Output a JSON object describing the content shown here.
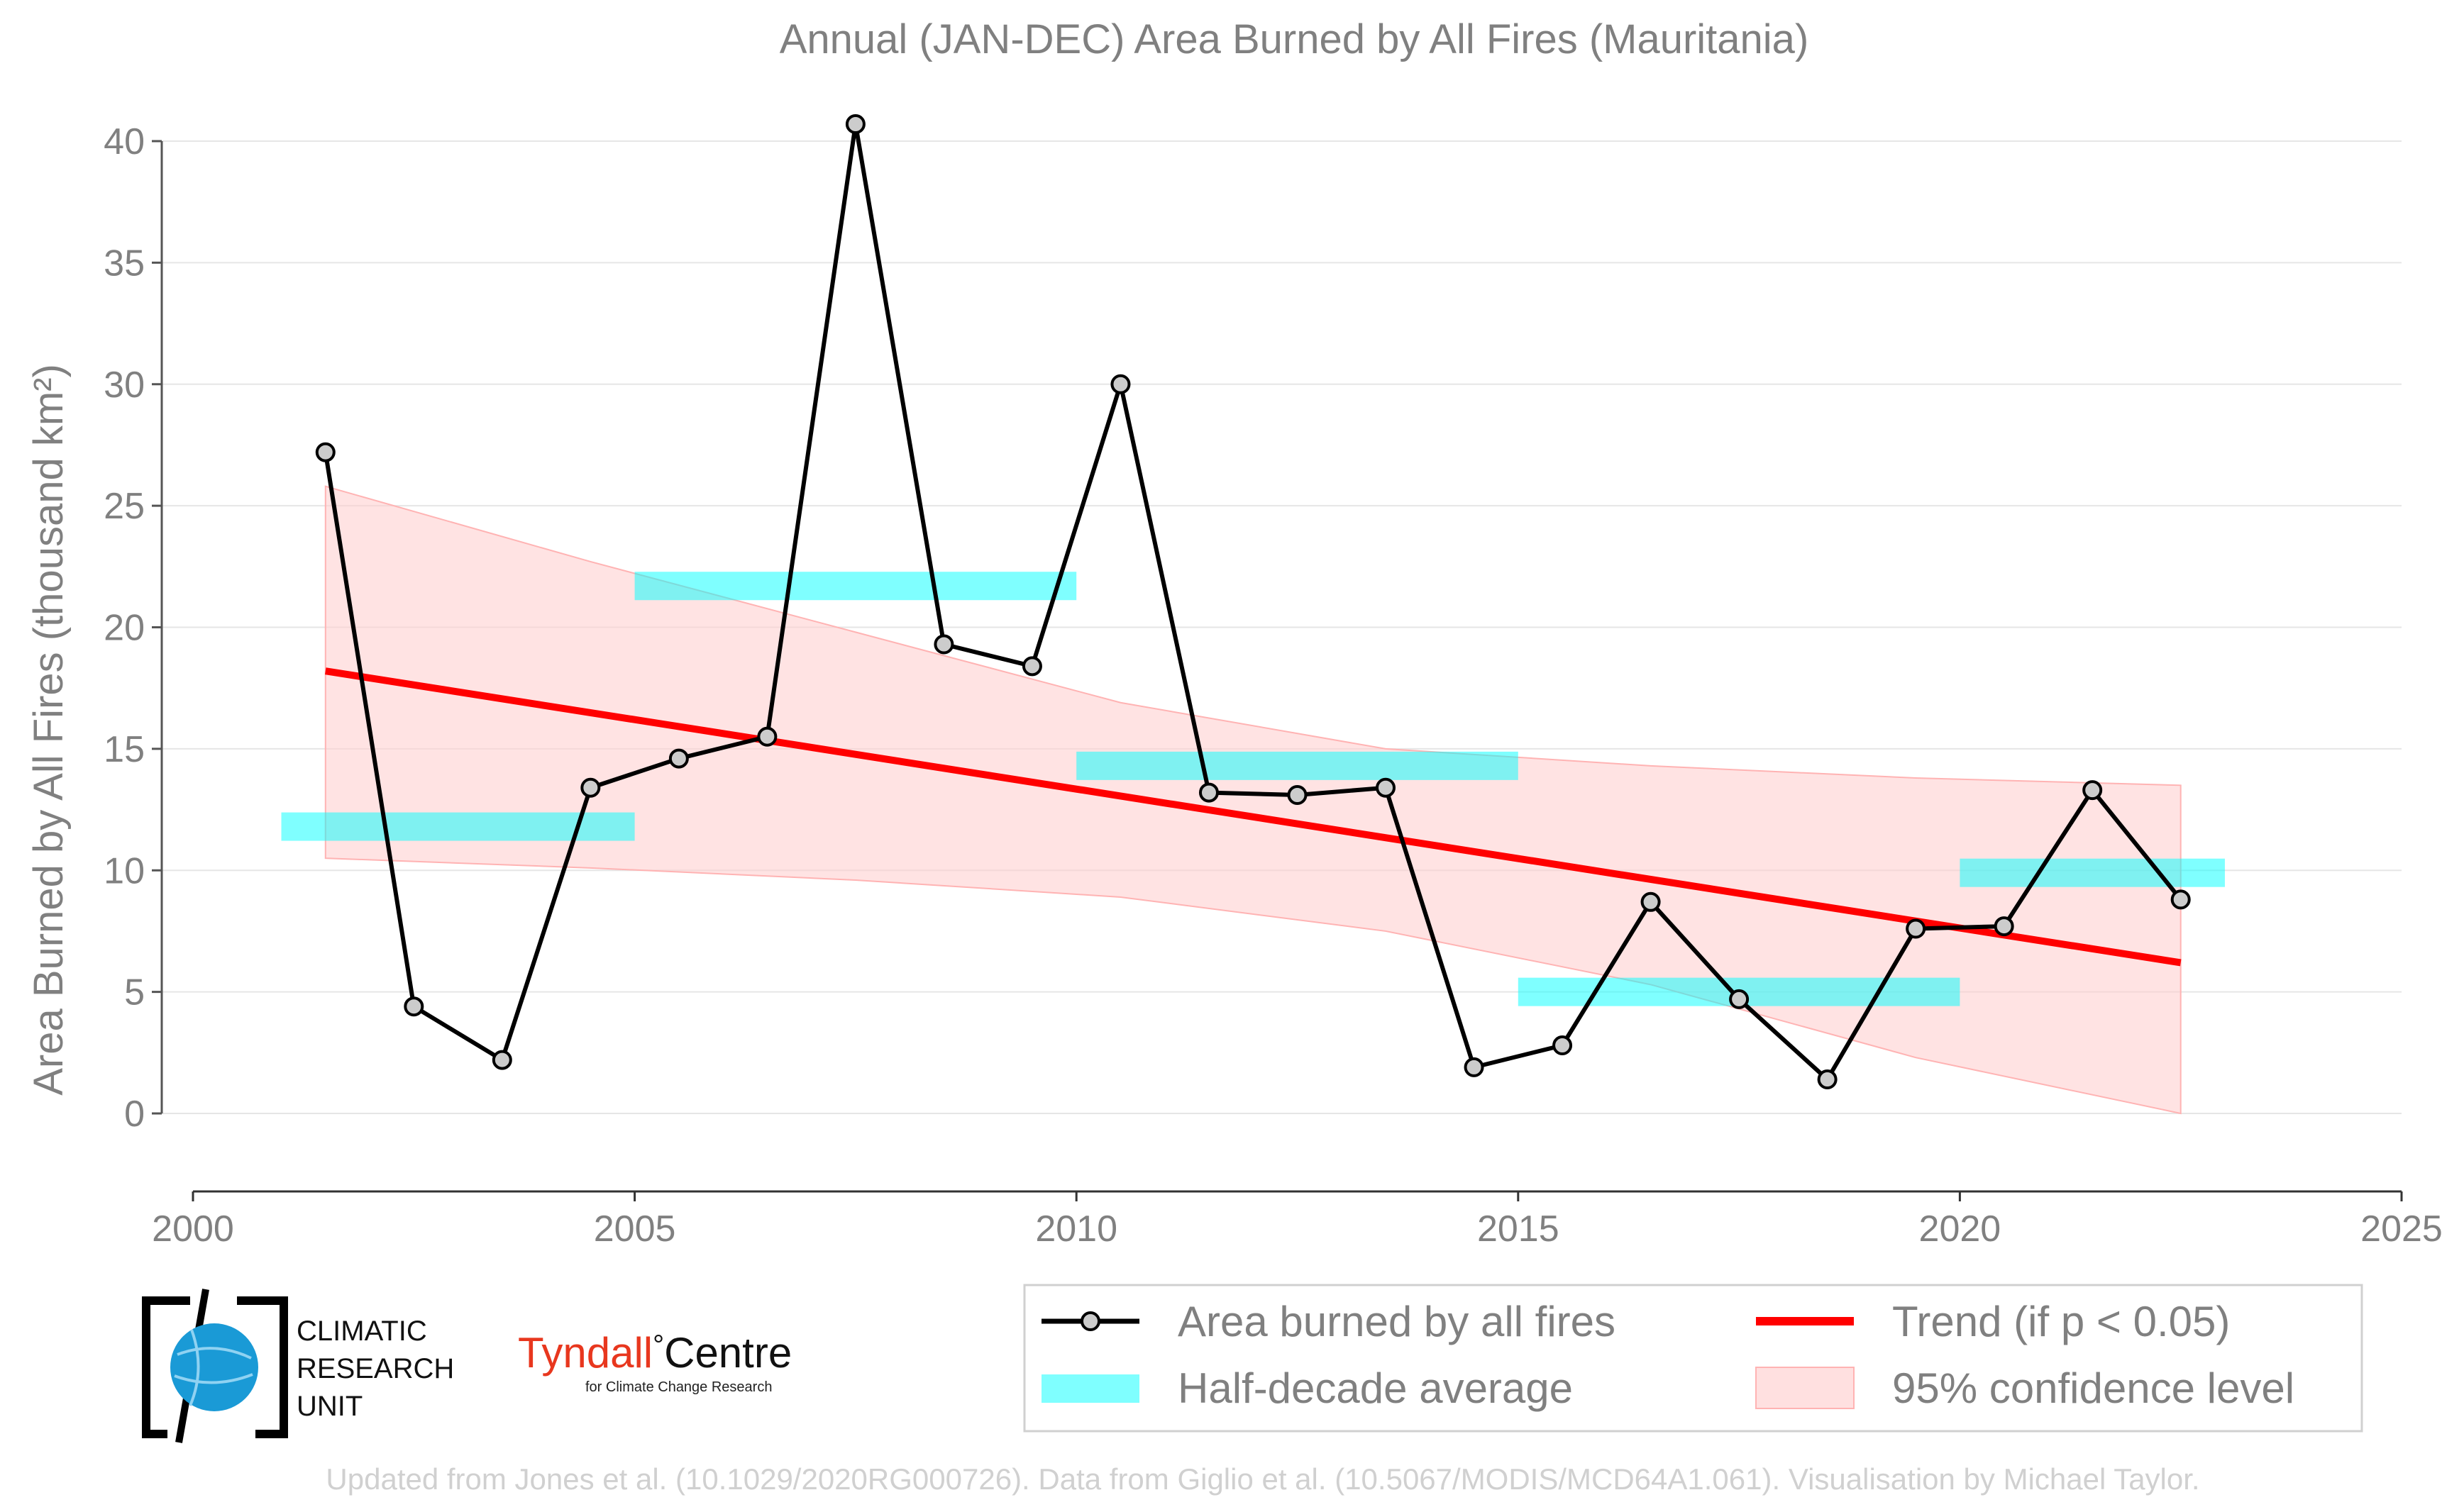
{
  "chart_data": {
    "type": "line",
    "title": "Annual (JAN-DEC) Area Burned by All Fires (Mauritania)",
    "ylabel": "Area Burned by All Fires (thousand km²)",
    "xlabel": "",
    "xlim": [
      2000,
      2025
    ],
    "ylim": [
      -3.3,
      41.5
    ],
    "x_ticks": [
      "2000",
      "2005",
      "2010",
      "2015",
      "2020",
      "2025"
    ],
    "y_ticks": [
      "0",
      "5",
      "10",
      "15",
      "20",
      "25",
      "30",
      "35",
      "40"
    ],
    "grid": "horizontal",
    "legend_position": "bottom-right",
    "series": [
      {
        "name": "Area burned by all fires",
        "color": "#000000",
        "x": [
          2001.5,
          2002.5,
          2003.5,
          2004.5,
          2005.5,
          2006.5,
          2007.5,
          2008.5,
          2009.5,
          2010.5,
          2011.5,
          2012.5,
          2013.5,
          2014.5,
          2015.5,
          2016.5,
          2017.5,
          2018.5,
          2019.5,
          2020.5,
          2021.5,
          2022.5
        ],
        "y": [
          27.2,
          4.4,
          2.2,
          13.4,
          14.6,
          15.5,
          40.7,
          19.3,
          18.4,
          30.0,
          13.2,
          13.1,
          13.4,
          1.9,
          2.8,
          8.7,
          4.7,
          1.4,
          7.6,
          7.7,
          13.3,
          8.8
        ]
      },
      {
        "name": "Half-decade average",
        "color": "#00ffff",
        "segments": [
          {
            "x0": 2001.0,
            "x1": 2005.0,
            "y": 11.8
          },
          {
            "x0": 2005.0,
            "x1": 2010.0,
            "y": 21.7
          },
          {
            "x0": 2010.0,
            "x1": 2015.0,
            "y": 14.3
          },
          {
            "x0": 2015.0,
            "x1": 2020.0,
            "y": 5.0
          },
          {
            "x0": 2020.0,
            "x1": 2023.0,
            "y": 9.9
          }
        ]
      },
      {
        "name": "Trend (if p < 0.05)",
        "color": "#ff0000",
        "x": [
          2001.5,
          2022.5
        ],
        "y": [
          18.2,
          6.2
        ]
      },
      {
        "name": "95% confidence level",
        "color": "#ffcccc",
        "x": [
          2001.5,
          2004.5,
          2007.5,
          2010.5,
          2013.5,
          2016.5,
          2019.5,
          2022.5
        ],
        "upper": [
          25.8,
          22.7,
          19.8,
          16.9,
          15.0,
          14.3,
          13.8,
          13.5
        ],
        "lower": [
          10.5,
          10.1,
          9.6,
          8.9,
          7.5,
          5.3,
          2.3,
          0.0
        ]
      }
    ]
  },
  "legend": {
    "items": [
      "Area burned by all fires",
      "Trend (if p < 0.05)",
      "Half-decade average",
      "95% confidence level"
    ]
  },
  "logos": {
    "cru_line1": "CLIMATIC",
    "cru_line2": "RESEARCH",
    "cru_line3": "UNIT",
    "tyndall_name": "Tyndall",
    "tyndall_degree": "°",
    "tyndall_centre": "Centre",
    "tyndall_sub": "for Climate Change Research",
    "cru_color": "#1a9ad6",
    "tyndall_color": "#e8371e"
  },
  "credit": "Updated from Jones et al. (10.1029/2020RG000726). Data from Giglio et al. (10.5067/MODIS/MCD64A1.061). Visualisation by Michael Taylor."
}
